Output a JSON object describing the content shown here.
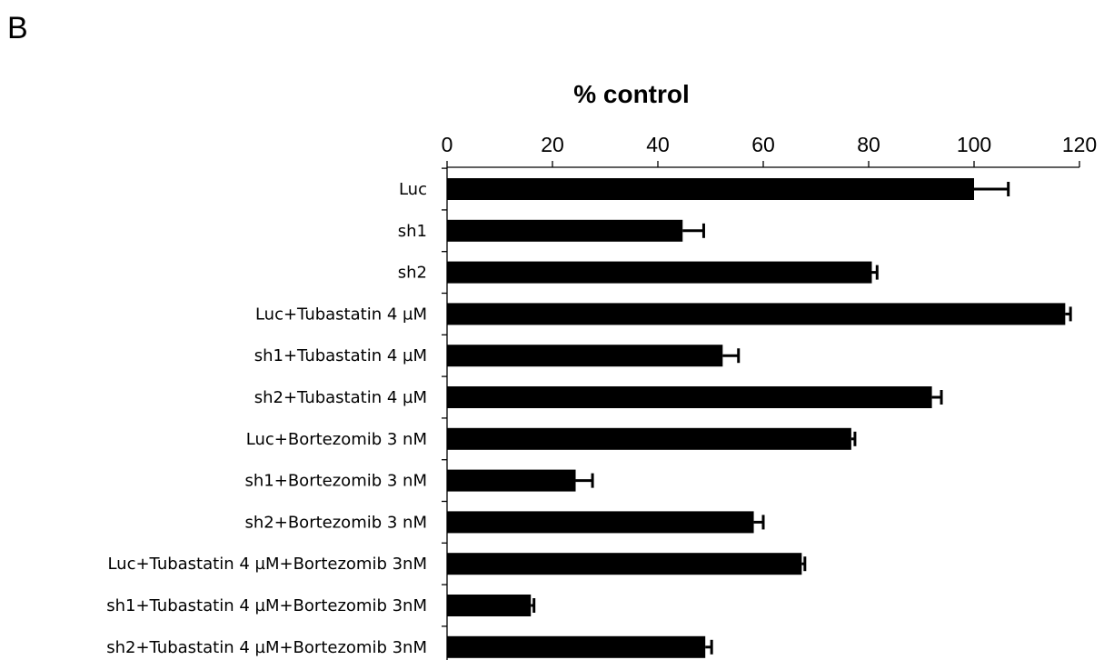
{
  "panel_label": "B",
  "chart_data": {
    "type": "bar",
    "orientation": "horizontal",
    "title": "",
    "xlabel": "% control",
    "ylabel": "",
    "xlim": [
      0,
      120
    ],
    "xticks": [
      0,
      20,
      40,
      60,
      80,
      100,
      120
    ],
    "xtick_labels": [
      "0",
      "20",
      "40",
      "60",
      "80",
      "100",
      "120"
    ],
    "axis_position": "top",
    "grid": false,
    "legend": "none",
    "bar_color": "#000000",
    "categories": [
      "Luc",
      "sh1",
      "sh2",
      "Luc+Tubastatin 4 µM",
      "sh1+Tubastatin 4 µM",
      "sh2+Tubastatin 4 µM",
      "Luc+Bortezomib 3 nM",
      "sh1+Bortezomib 3 nM",
      "sh2+Bortezomib 3 nM",
      "Luc+Tubastatin 4 µM+Bortezomib 3nM",
      "sh1+Tubastatin 4 µM+Bortezomib 3nM",
      "sh2+Tubastatin 4 µM+Bortezomib 3nM"
    ],
    "values": [
      100,
      44.7,
      80.6,
      117.3,
      52.3,
      92.0,
      76.7,
      24.4,
      58.2,
      67.3,
      15.9,
      49.0
    ],
    "errors": [
      6.5,
      4.0,
      1.0,
      1.0,
      3.0,
      1.8,
      0.7,
      3.2,
      1.8,
      0.6,
      0.6,
      1.2
    ]
  }
}
